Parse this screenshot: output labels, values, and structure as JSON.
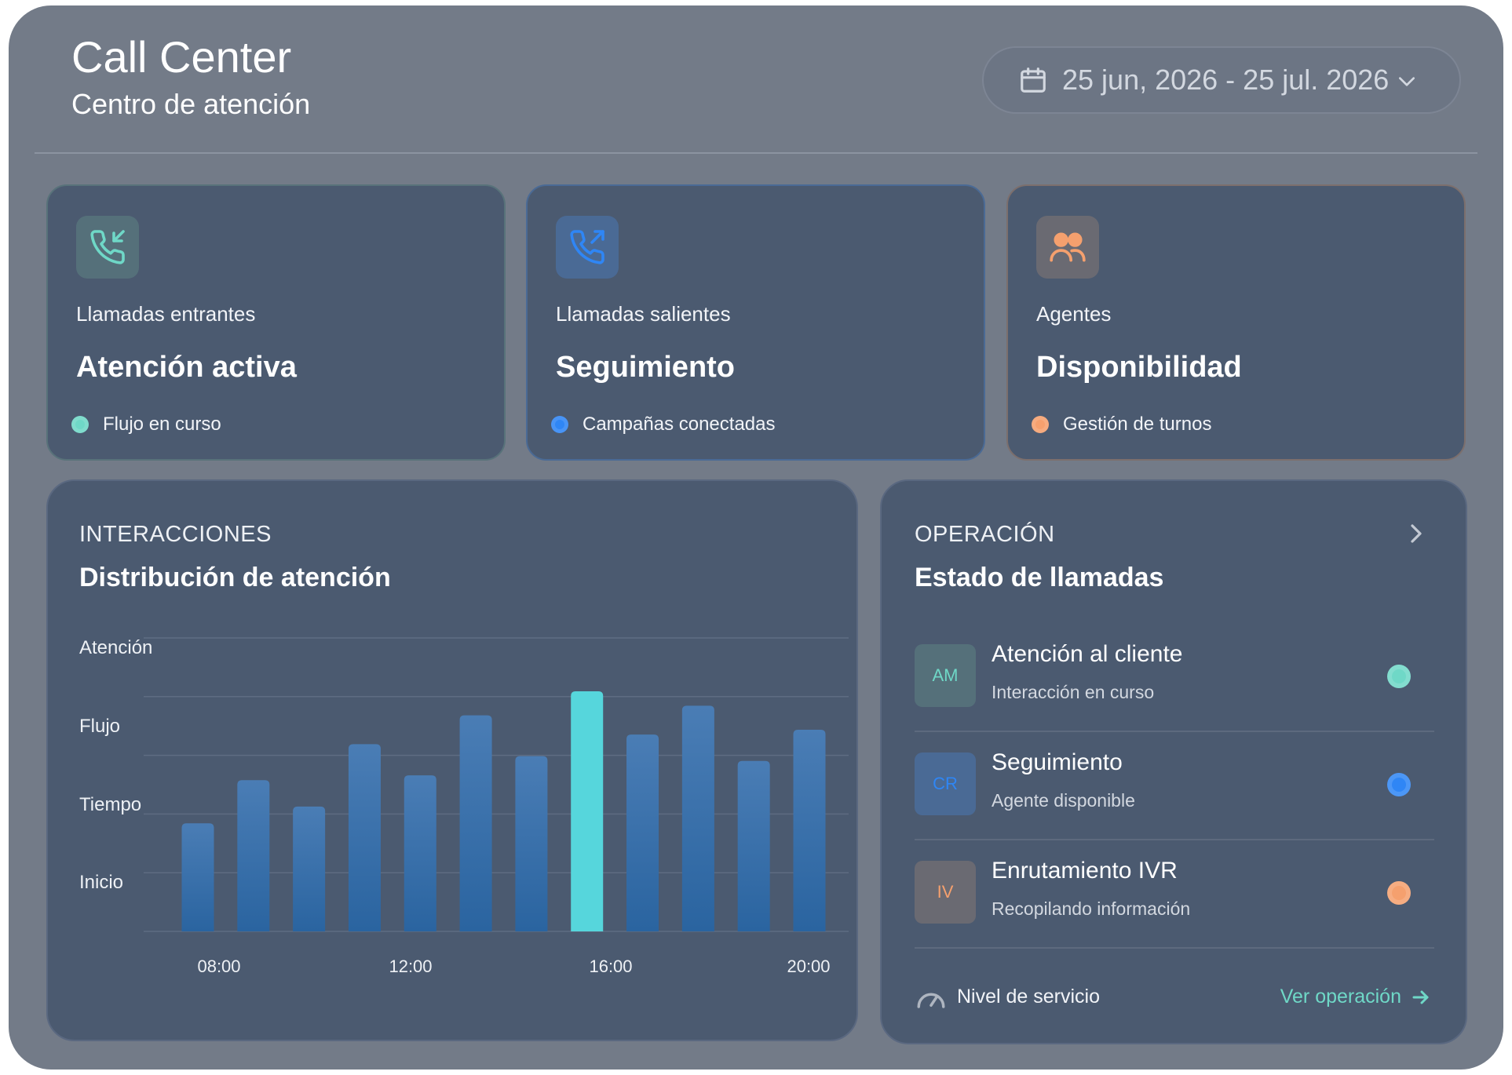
{
  "header": {
    "title": "Call Center",
    "subtitle": "Centro de atención",
    "date_range": "25 jun, 2026 - 25 jul. 2026"
  },
  "kpis": [
    {
      "label": "Llamadas entrantes",
      "value": "Atención activa",
      "status": "Flujo en curso",
      "icon": "phone-incoming-icon",
      "accent": "#6fd8c7"
    },
    {
      "label": "Llamadas salientes",
      "value": "Seguimiento",
      "status": "Campañas conectadas",
      "icon": "phone-outgoing-icon",
      "accent": "#2f86f5"
    },
    {
      "label": "Agentes",
      "value": "Disponibilidad",
      "status": "Gestión de turnos",
      "icon": "users-icon",
      "accent": "#f5a06e"
    }
  ],
  "interactions": {
    "eyebrow": "INTERACCIONES",
    "title": "Distribución de atención"
  },
  "chart_data": {
    "type": "bar",
    "y_tick_labels": [
      "Atención",
      "Flujo",
      "Tiempo",
      "Inicio"
    ],
    "x_tick_labels": [
      "08:00",
      "12:00",
      "16:00",
      "20:00"
    ],
    "values": [
      0.45,
      0.63,
      0.52,
      0.78,
      0.65,
      0.9,
      0.73,
      1.0,
      0.82,
      0.94,
      0.71,
      0.84
    ],
    "highlight_index": 7,
    "ylim": [
      0,
      1
    ],
    "grid": true,
    "colors": {
      "bar_top": "#4a7db5",
      "bar_bottom": "#2a64a0",
      "highlight": "#56d6dc",
      "grid": "#5e6c82"
    }
  },
  "operations": {
    "eyebrow": "OPERACIÓN",
    "title": "Estado de llamadas",
    "rows": [
      {
        "initials": "AM",
        "name": "Atención al cliente",
        "desc": "Interacción en curso",
        "color": "#6fd8c7",
        "avatar_bg": "#55707a"
      },
      {
        "initials": "CR",
        "name": "Seguimiento",
        "desc": "Agente disponible",
        "color": "#2f86f5",
        "avatar_bg": "#4a6a95"
      },
      {
        "initials": "IV",
        "name": "Enrutamiento IVR",
        "desc": "Recopilando información",
        "color": "#f5a06e",
        "avatar_bg": "#6a6a72"
      }
    ],
    "footer_label": "Nivel de servicio",
    "link_label": "Ver operación"
  }
}
